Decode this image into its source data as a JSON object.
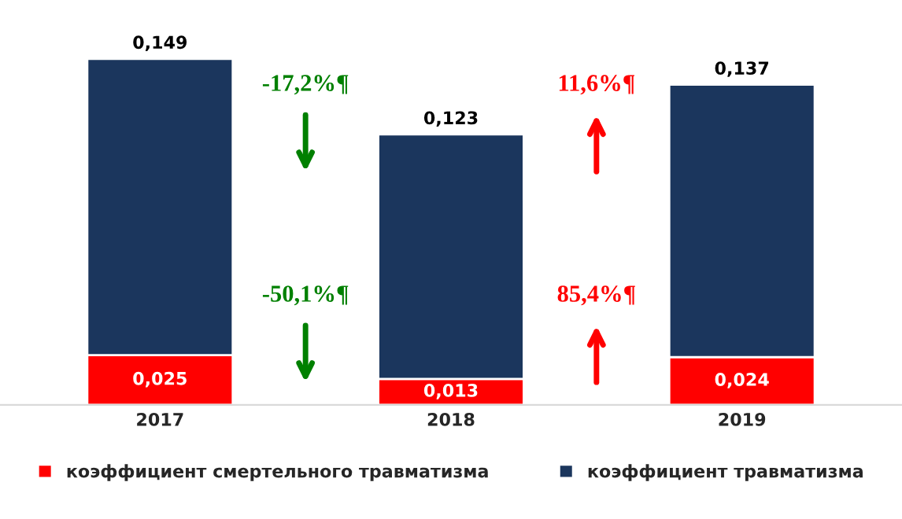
{
  "chart_data": {
    "type": "bar",
    "stacked": true,
    "legend": "bottom",
    "grid": false,
    "categories": [
      "2017",
      "2018",
      "2019"
    ],
    "series": [
      {
        "name": "коэффициент смертельного травматизма",
        "color": "#ff0000",
        "values": [
          0.025,
          0.013,
          0.024
        ],
        "value_labels": [
          "0,025",
          "0,013",
          "0,024"
        ]
      },
      {
        "name": "коэффициент травматизма",
        "color": "#1b365d",
        "values": [
          0.149,
          0.123,
          0.137
        ],
        "value_labels": [
          "0,149",
          "0,123",
          "0,137"
        ]
      }
    ],
    "annotations": [
      "-17,2%¶",
      "-50,1%¶",
      "11,6%¶",
      "85,4%¶"
    ]
  }
}
